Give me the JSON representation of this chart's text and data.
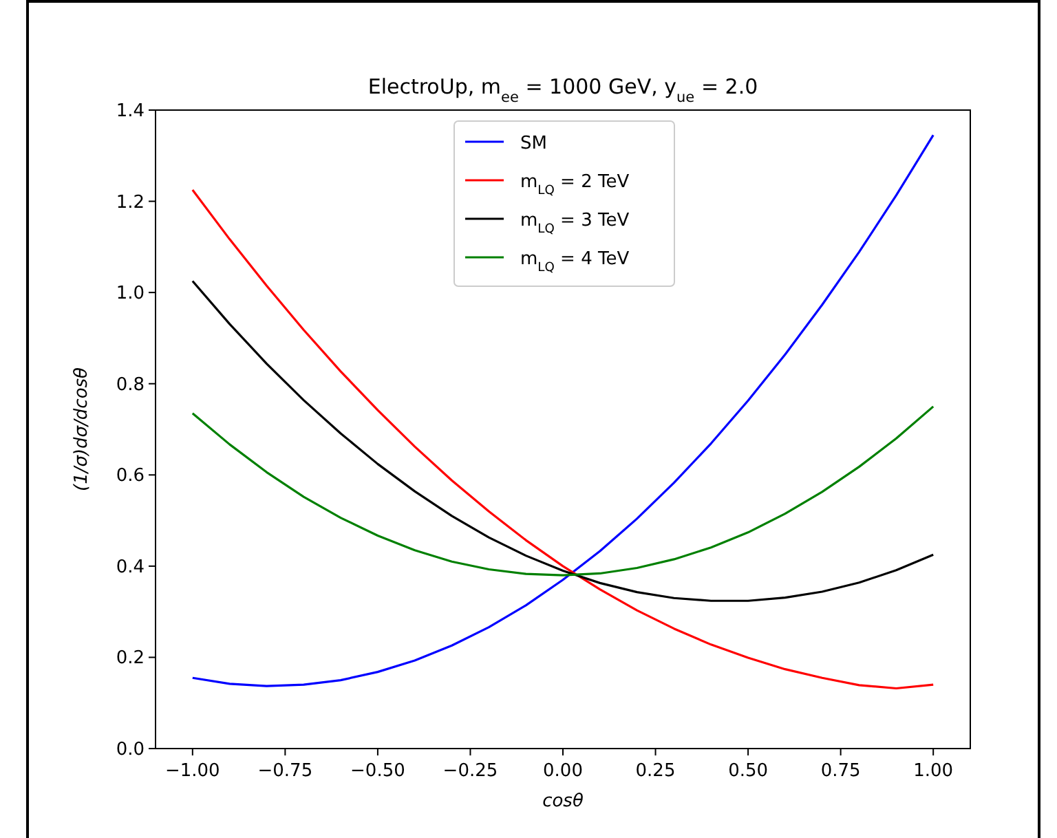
{
  "chart_data": {
    "type": "line",
    "title": "ElectroUp, m$_{ee}$ = 1000 GeV, y$_{ue}$ = 2.0",
    "xlabel": "cosθ",
    "ylabel": "(1/σ)dσ/dcosθ",
    "x": [
      -1,
      -0.9,
      -0.8,
      -0.7,
      -0.6,
      -0.5,
      -0.4,
      -0.3,
      -0.2,
      -0.1,
      0,
      0.1,
      0.2,
      0.3,
      0.4,
      0.5,
      0.6,
      0.7,
      0.8,
      0.9,
      1
    ],
    "series": [
      {
        "name": "SM",
        "color": "#0000ff",
        "values": [
          0.155,
          0.142,
          0.137,
          0.14,
          0.15,
          0.168,
          0.193,
          0.226,
          0.266,
          0.314,
          0.37,
          0.433,
          0.504,
          0.583,
          0.669,
          0.763,
          0.864,
          0.973,
          1.089,
          1.213,
          1.345
        ]
      },
      {
        "name": "m$_{LQ}$ = 2 TeV",
        "color": "#ff0000",
        "values": [
          1.225,
          1.117,
          1.015,
          0.918,
          0.827,
          0.742,
          0.662,
          0.588,
          0.52,
          0.457,
          0.4,
          0.349,
          0.303,
          0.263,
          0.228,
          0.199,
          0.174,
          0.155,
          0.139,
          0.132,
          0.14
        ]
      },
      {
        "name": "m$_{LQ}$ = 3 TeV",
        "color": "#000000",
        "values": [
          1.025,
          0.931,
          0.844,
          0.764,
          0.691,
          0.624,
          0.564,
          0.51,
          0.463,
          0.423,
          0.39,
          0.363,
          0.343,
          0.33,
          0.324,
          0.324,
          0.331,
          0.344,
          0.364,
          0.391,
          0.425
        ]
      },
      {
        "name": "m$_{LQ}$ = 4 TeV",
        "color": "#008000",
        "values": [
          0.735,
          0.667,
          0.606,
          0.552,
          0.506,
          0.467,
          0.435,
          0.41,
          0.393,
          0.383,
          0.38,
          0.384,
          0.396,
          0.415,
          0.441,
          0.474,
          0.515,
          0.563,
          0.618,
          0.68,
          0.75
        ]
      }
    ],
    "xlim": [
      -1.1,
      1.1
    ],
    "ylim": [
      0,
      1.4
    ],
    "xticks": [
      {
        "value": -1,
        "label": "−1.00"
      },
      {
        "value": -0.75,
        "label": "−0.75"
      },
      {
        "value": -0.5,
        "label": "−0.50"
      },
      {
        "value": -0.25,
        "label": "−0.25"
      },
      {
        "value": 0,
        "label": "0.00"
      },
      {
        "value": 0.25,
        "label": "0.25"
      },
      {
        "value": 0.5,
        "label": "0.50"
      },
      {
        "value": 0.75,
        "label": "0.75"
      },
      {
        "value": 1,
        "label": "1.00"
      }
    ],
    "yticks": [
      {
        "value": 0,
        "label": "0.0"
      },
      {
        "value": 0.2,
        "label": "0.2"
      },
      {
        "value": 0.4,
        "label": "0.4"
      },
      {
        "value": 0.6,
        "label": "0.6"
      },
      {
        "value": 0.8,
        "label": "0.8"
      },
      {
        "value": 1,
        "label": "1.0"
      },
      {
        "value": 1.2,
        "label": "1.2"
      },
      {
        "value": 1.4,
        "label": "1.4"
      }
    ],
    "grid": false,
    "legend": "top",
    "line_style": "solid",
    "marker": "none"
  }
}
